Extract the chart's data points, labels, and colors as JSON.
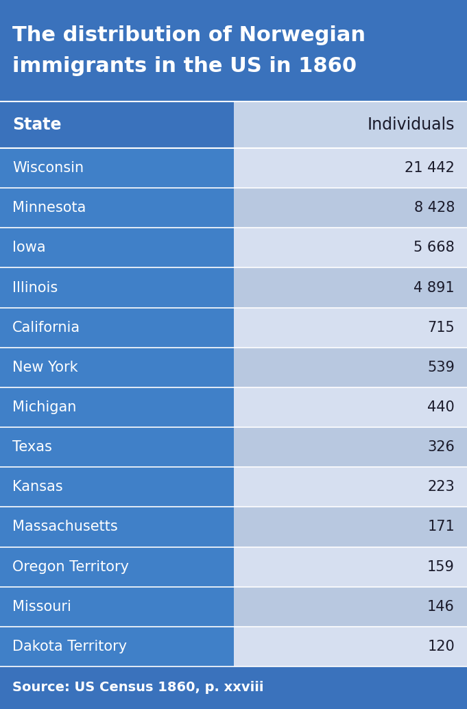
{
  "title_line1": "The distribution of Norwegian",
  "title_line2": "immigrants in the US in 1860",
  "header": [
    "State",
    "Individuals"
  ],
  "rows": [
    [
      "Wisconsin",
      "21 442"
    ],
    [
      "Minnesota",
      "8 428"
    ],
    [
      "Iowa",
      "5 668"
    ],
    [
      "Illinois",
      "4 891"
    ],
    [
      "California",
      "715"
    ],
    [
      "New York",
      "539"
    ],
    [
      "Michigan",
      "440"
    ],
    [
      "Texas",
      "326"
    ],
    [
      "Kansas",
      "223"
    ],
    [
      "Massachusetts",
      "171"
    ],
    [
      "Oregon Territory",
      "159"
    ],
    [
      "Missouri",
      "146"
    ],
    [
      "Dakota Territory",
      "120"
    ]
  ],
  "footer": "Source: US Census 1860, p. xxviii",
  "title_bg": "#3A72BC",
  "header_left_bg": "#3A72BC",
  "header_right_bg": "#C5D3E8",
  "row_left_bg": "#4080C8",
  "row_right_light": "#D6DFF0",
  "row_right_medium": "#B8C8E0",
  "footer_bg": "#3A72BC",
  "title_color": "#FFFFFF",
  "header_left_color": "#FFFFFF",
  "header_right_color": "#1A1A2A",
  "row_left_color": "#FFFFFF",
  "row_right_color": "#1A1A2A",
  "footer_color": "#FFFFFF",
  "col_split": 0.5,
  "title_fontsize": 22,
  "header_fontsize": 17,
  "row_fontsize": 15,
  "footer_fontsize": 14
}
